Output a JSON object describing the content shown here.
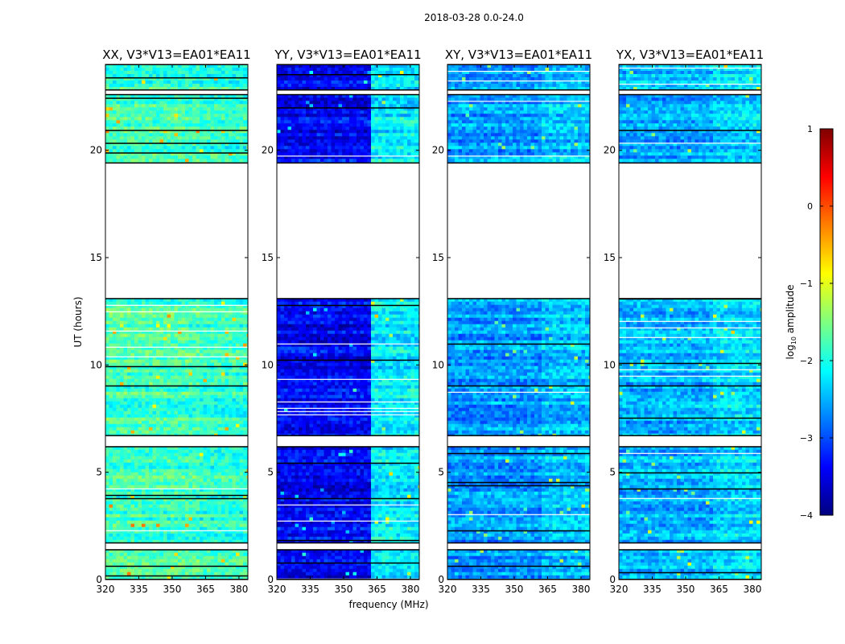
{
  "figure": {
    "suptitle": "2018-03-28 0.0-24.0",
    "xlabel": "frequency (MHz)",
    "ylabel": "UT (hours)"
  },
  "colorbar": {
    "label_prefix": "log",
    "label_sub": "10",
    "label_suffix": " amplitude",
    "range": [
      -4,
      1
    ],
    "ticks": [
      {
        "value": 1,
        "label": "1"
      },
      {
        "value": 0,
        "label": "0"
      },
      {
        "value": -1,
        "label": "−1"
      },
      {
        "value": -2,
        "label": "−2"
      },
      {
        "value": -3,
        "label": "−3"
      },
      {
        "value": -4,
        "label": "−4"
      }
    ],
    "colormap": [
      "#00007f",
      "#0000ff",
      "#007fff",
      "#00ffff",
      "#7fff7f",
      "#ffff00",
      "#ff7f00",
      "#ff0000",
      "#7f0000"
    ]
  },
  "chart_data": {
    "type": "heatmap",
    "value_name": "log10 amplitude",
    "xlim": [
      320,
      384
    ],
    "ylim": [
      0,
      24
    ],
    "xticks": [
      {
        "value": 320,
        "label": "320"
      },
      {
        "value": 335,
        "label": "335"
      },
      {
        "value": 350,
        "label": "350"
      },
      {
        "value": 365,
        "label": "365"
      },
      {
        "value": 380,
        "label": "380"
      }
    ],
    "yticks": [
      {
        "value": 0,
        "label": "0"
      },
      {
        "value": 5,
        "label": "5"
      },
      {
        "value": 10,
        "label": "10"
      },
      {
        "value": 15,
        "label": "15"
      },
      {
        "value": 20,
        "label": "20"
      }
    ],
    "data_intervals_ut": [
      [
        0.0,
        1.4
      ],
      [
        1.7,
        6.2
      ],
      [
        6.7,
        13.1
      ],
      [
        19.4,
        22.6
      ],
      [
        22.8,
        24.0
      ]
    ],
    "flagged_intervals_ut": [
      [
        1.4,
        1.7
      ],
      [
        6.2,
        6.7
      ],
      [
        13.1,
        19.4
      ],
      [
        22.6,
        22.8
      ]
    ],
    "panels": [
      {
        "title": "XX, V3*V13=EA01*EA11",
        "polarization": "XX",
        "level_low_band": -1.8,
        "level_high_band": -1.9
      },
      {
        "title": "YY, V3*V13=EA01*EA11",
        "polarization": "YY",
        "level_low_band": -3.4,
        "level_high_band": -2.2
      },
      {
        "title": "XY, V3*V13=EA01*EA11",
        "polarization": "XY",
        "level_low_band": -2.6,
        "level_high_band": -2.4
      },
      {
        "title": "YX, V3*V13=EA01*EA11",
        "polarization": "YX",
        "level_low_band": -2.5,
        "level_high_band": -2.3
      }
    ]
  }
}
